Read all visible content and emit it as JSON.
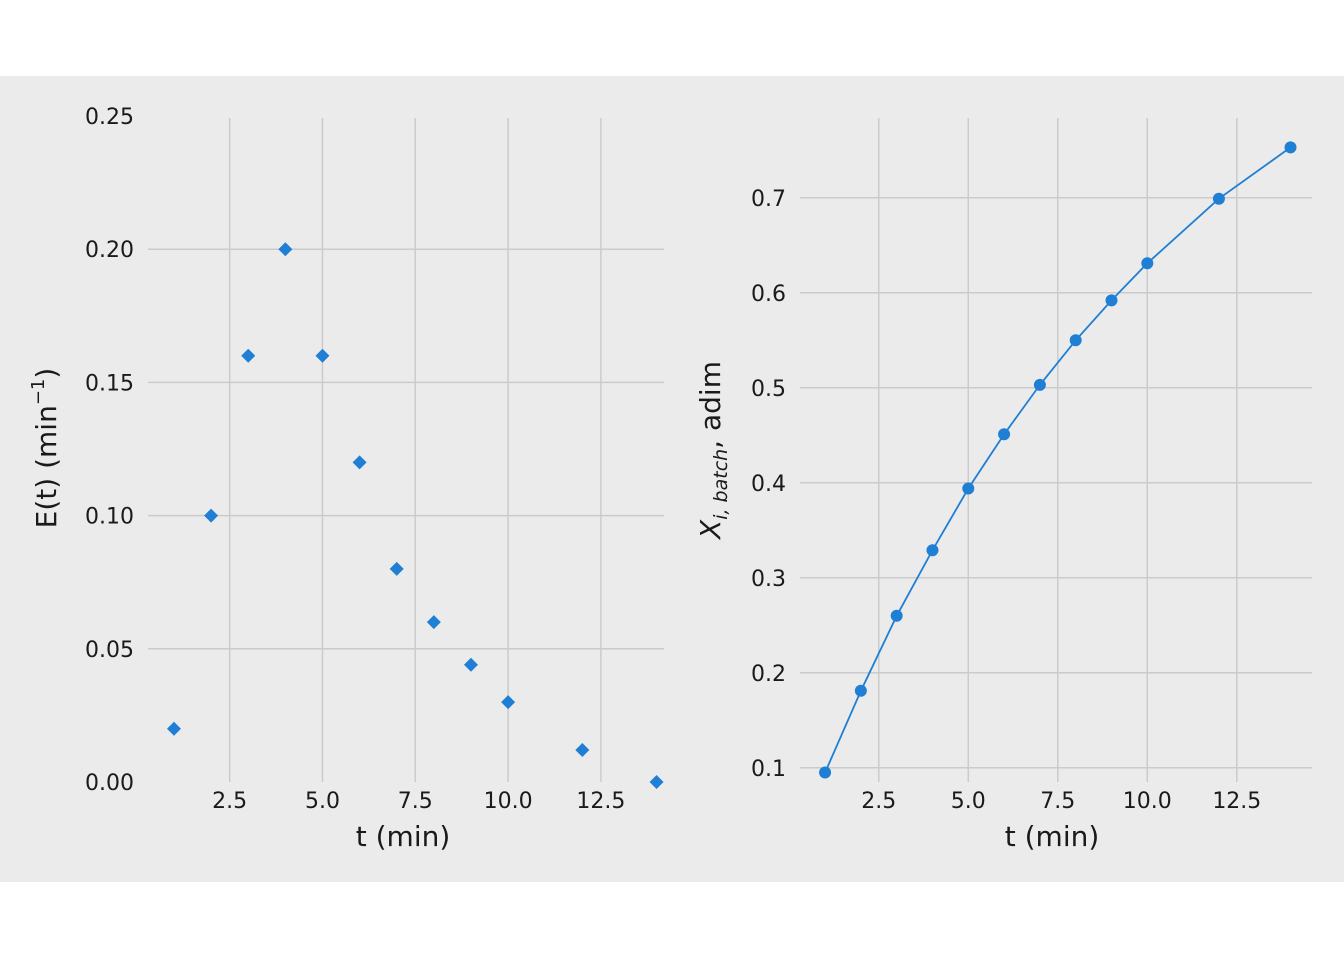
{
  "chart_data": [
    {
      "type": "scatter",
      "marker": "diamond",
      "color": "#1f7fd4",
      "xlabel": "t (min)",
      "ylabel": "E(t) (min",
      "ylabel_sup": "−1",
      "ylabel_close": ")",
      "xlim": [
        0.3,
        14.2
      ],
      "ylim": [
        0,
        0.25
      ],
      "xticks": [
        2.5,
        5.0,
        7.5,
        10.0,
        12.5
      ],
      "xtick_labels": [
        "2.5",
        "5.0",
        "7.5",
        "10.0",
        "12.5"
      ],
      "yticks": [
        0,
        0.05,
        0.1,
        0.15,
        0.2,
        0.25
      ],
      "ytick_labels": [
        "0.00",
        "0.05",
        "0.10",
        "0.15",
        "0.20",
        "0.25"
      ],
      "grid": true,
      "x": [
        1,
        2,
        3,
        4,
        5,
        6,
        7,
        8,
        9,
        10,
        12,
        14
      ],
      "y": [
        0.02,
        0.1,
        0.16,
        0.2,
        0.16,
        0.12,
        0.08,
        0.06,
        0.044,
        0.03,
        0.012,
        0.0
      ]
    },
    {
      "type": "line",
      "marker": "circle",
      "color": "#1f7fd4",
      "xlabel": "t (min)",
      "ylabel_main": "X",
      "ylabel_sub": "i, batch",
      "ylabel_rest": ", adim",
      "xlim": [
        0.3,
        14.6
      ],
      "ylim": [
        0.085,
        0.785
      ],
      "xticks": [
        2.5,
        5.0,
        7.5,
        10.0,
        12.5
      ],
      "xtick_labels": [
        "2.5",
        "5.0",
        "7.5",
        "10.0",
        "12.5"
      ],
      "yticks": [
        0.1,
        0.2,
        0.3,
        0.4,
        0.5,
        0.6,
        0.7
      ],
      "ytick_labels": [
        "0.1",
        "0.2",
        "0.3",
        "0.4",
        "0.5",
        "0.6",
        "0.7"
      ],
      "grid": true,
      "x": [
        1,
        2,
        3,
        4,
        5,
        6,
        7,
        8,
        9,
        10,
        12,
        14
      ],
      "y": [
        0.095,
        0.181,
        0.26,
        0.329,
        0.394,
        0.451,
        0.503,
        0.55,
        0.592,
        0.631,
        0.699,
        0.753
      ]
    }
  ]
}
